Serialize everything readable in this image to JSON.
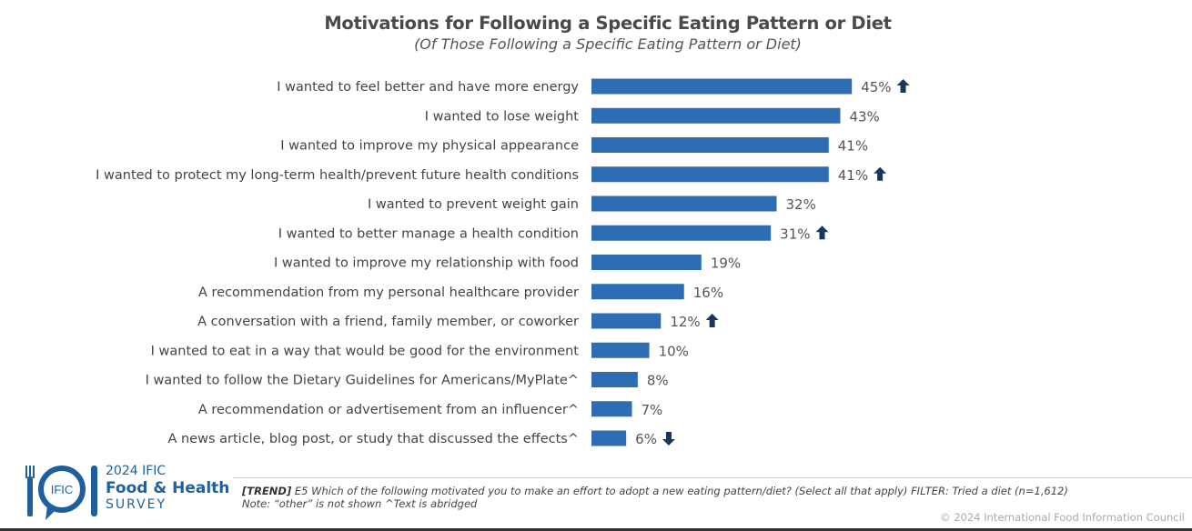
{
  "chart_data": {
    "type": "bar",
    "orientation": "horizontal",
    "title": "Motivations for Following a Specific Eating Pattern or Diet",
    "subtitle": "(Of Those Following a Specific Eating Pattern or Diet)",
    "categories": [
      "I wanted to feel better and have more energy",
      "I wanted to lose weight",
      "I wanted to improve my physical appearance",
      "I wanted to protect my long-term health/prevent future health conditions",
      "I wanted to prevent weight gain",
      "I wanted to better manage a health condition",
      "I wanted to improve my relationship with food",
      "A recommendation from my personal healthcare provider",
      "A conversation with a friend, family member, or coworker",
      "I wanted to eat in a way that would be good for the environment",
      "I wanted to follow the Dietary Guidelines for Americans/MyPlate^",
      "A recommendation or advertisement from an influencer^",
      "A news article, blog post, or study that discussed the effects^"
    ],
    "values": [
      45,
      43,
      41,
      41,
      32,
      31,
      19,
      16,
      12,
      10,
      8,
      7,
      6
    ],
    "data_labels": [
      "45%",
      "43%",
      "41%",
      "41%",
      "32%",
      "31%",
      "19%",
      "16%",
      "12%",
      "10%",
      "8%",
      "7%",
      "6%"
    ],
    "trend": [
      "up",
      "",
      "",
      "up",
      "",
      "up",
      "",
      "",
      "up",
      "",
      "",
      "",
      "down"
    ],
    "bar_color": "#2e6db4",
    "arrow_color": "#17375e",
    "grid": false,
    "legend": "none"
  },
  "footer": {
    "trend_tag": "[TREND]",
    "question": " E5 Which of the following motivated you to make an effort to adopt a new eating pattern/diet? (Select all that apply) FILTER: Tried a diet (n=1,612)",
    "note": "Note: “other” is not shown ^Text is abridged",
    "copyright": "© 2024 International Food Information Council"
  },
  "logo": {
    "mark": "IFIC",
    "line1": "2024 IFIC",
    "line2": "Food & Health",
    "line3": "SURVEY"
  }
}
